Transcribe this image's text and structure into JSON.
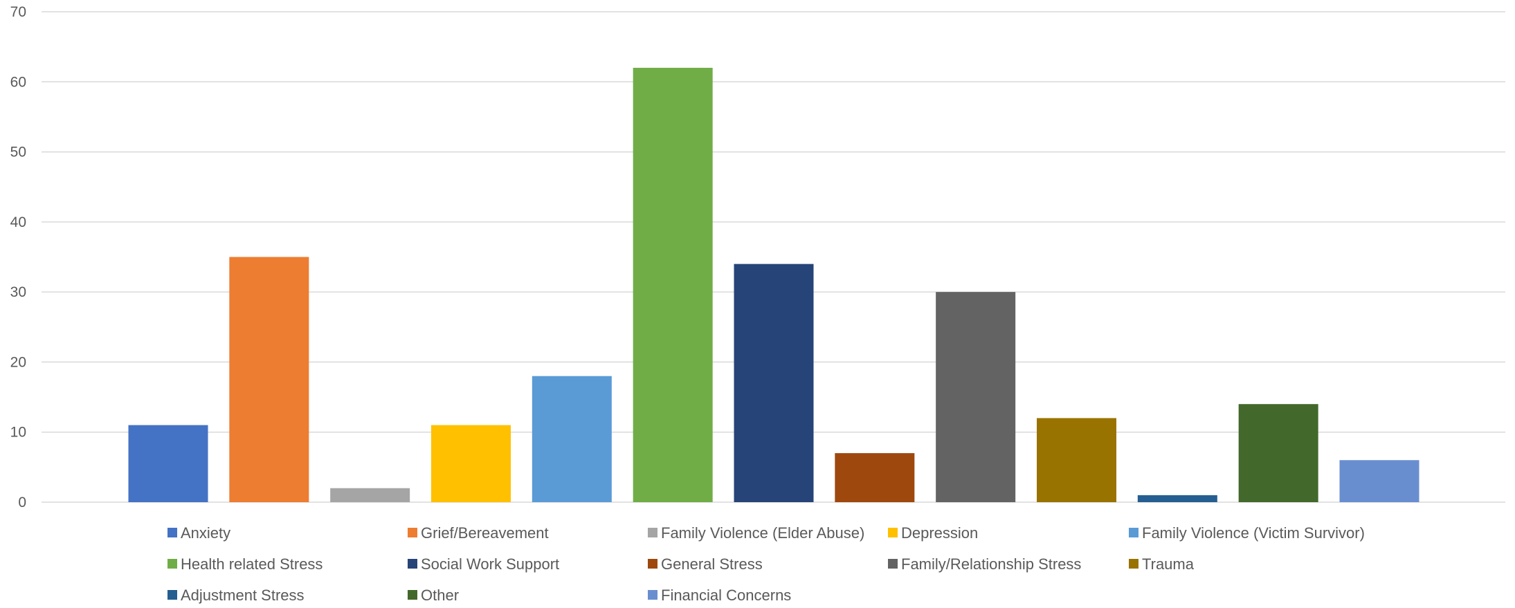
{
  "chart_data": {
    "type": "bar",
    "title": "",
    "xlabel": "",
    "ylabel": "",
    "ylim": [
      0,
      70
    ],
    "yticks": [
      0,
      10,
      20,
      30,
      40,
      50,
      60,
      70
    ],
    "grid": true,
    "legend_position": "bottom",
    "series": [
      {
        "name": "Anxiety",
        "value": 11,
        "color": "#4472C4"
      },
      {
        "name": "Grief/Bereavement",
        "value": 35,
        "color": "#ED7D31"
      },
      {
        "name": "Family Violence (Elder Abuse)",
        "value": 2,
        "color": "#A5A5A5"
      },
      {
        "name": "Depression",
        "value": 11,
        "color": "#FFC000"
      },
      {
        "name": "Family Violence (Victim Survivor)",
        "value": 18,
        "color": "#5B9BD5"
      },
      {
        "name": "Health related Stress",
        "value": 62,
        "color": "#70AD47"
      },
      {
        "name": "Social Work Support",
        "value": 34,
        "color": "#264478"
      },
      {
        "name": "General Stress",
        "value": 7,
        "color": "#9E480E"
      },
      {
        "name": "Family/Relationship Stress",
        "value": 30,
        "color": "#636363"
      },
      {
        "name": "Trauma",
        "value": 12,
        "color": "#997300"
      },
      {
        "name": "Adjustment Stress",
        "value": 1,
        "color": "#255E91"
      },
      {
        "name": "Other",
        "value": 14,
        "color": "#43682B"
      },
      {
        "name": "Financial Concerns",
        "value": 6,
        "color": "#698ED0"
      }
    ]
  }
}
